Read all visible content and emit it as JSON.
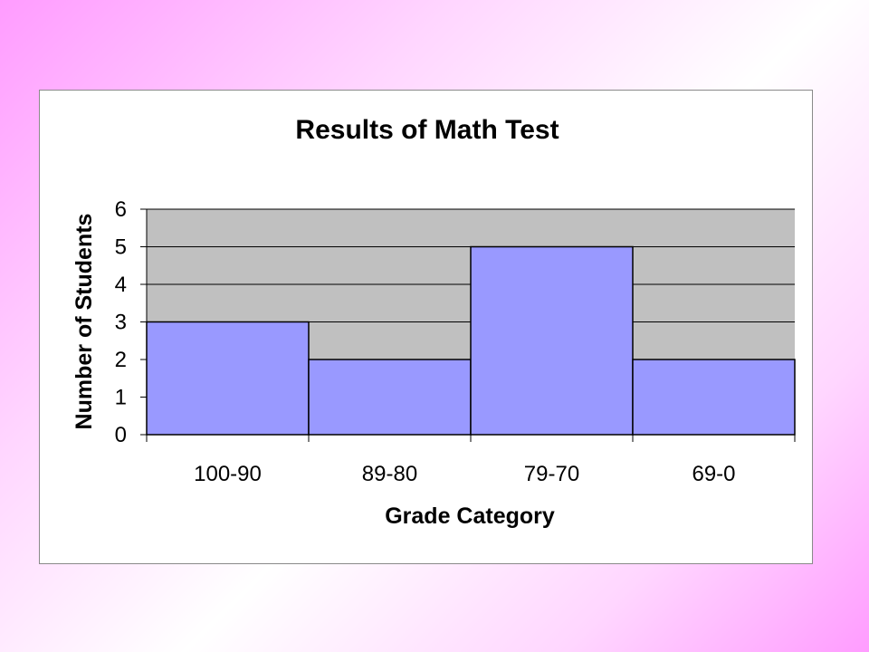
{
  "colors": {
    "plot_area": "#c0c0c0",
    "bar_fill": "#9999ff",
    "bar_stroke": "#000000",
    "gridline": "#000000",
    "frame_border": "#8a8a8a"
  },
  "chart_data": {
    "type": "bar",
    "title": "Results of Math Test",
    "xlabel": "Grade Category",
    "ylabel": "Number of Students",
    "categories": [
      "100-90",
      "89-80",
      "79-70",
      "69-0"
    ],
    "values": [
      3,
      2,
      5,
      2
    ],
    "ylim": [
      0,
      6
    ],
    "yticks": [
      "0",
      "1",
      "2",
      "3",
      "4",
      "5",
      "6"
    ],
    "grid": true,
    "legend": "none"
  }
}
